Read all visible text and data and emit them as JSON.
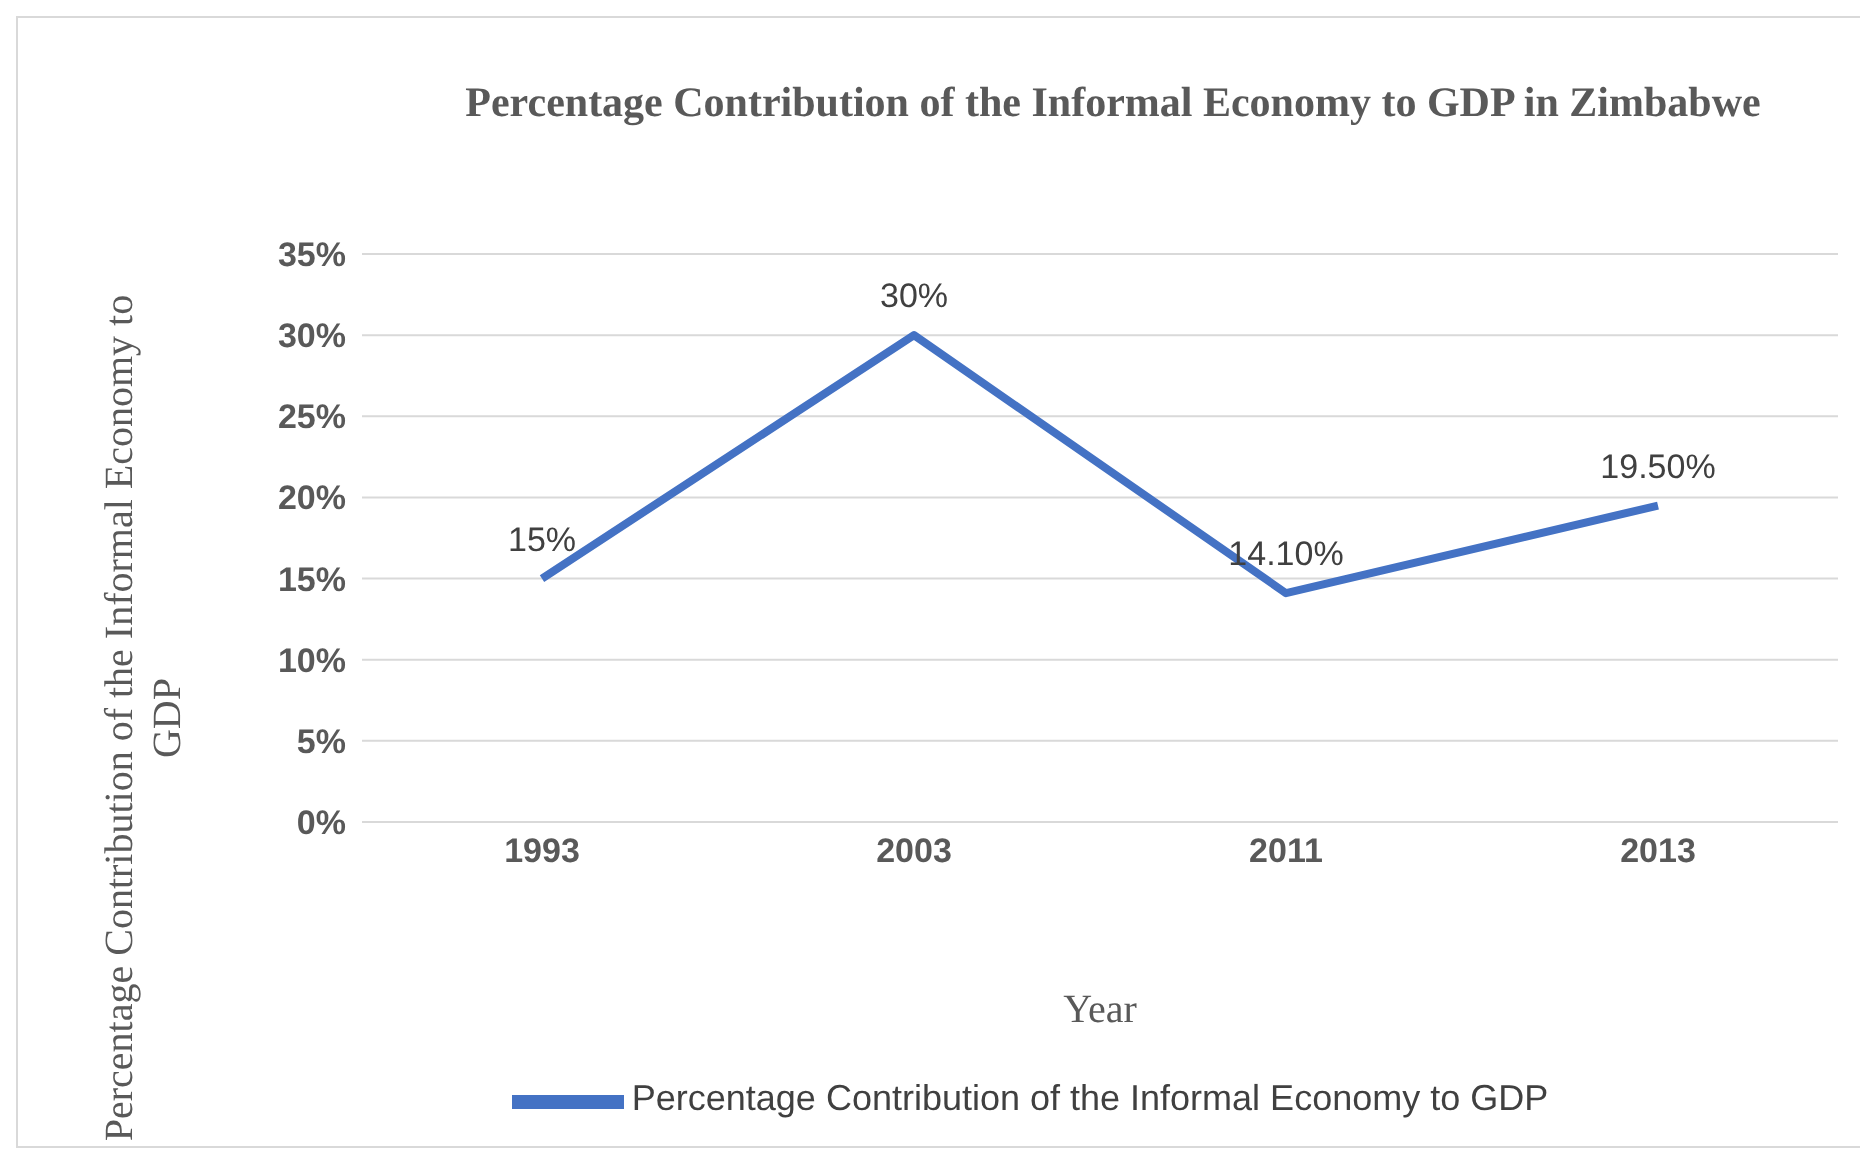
{
  "chart_data": {
    "type": "line",
    "title": "Percentage Contribution of the Informal Economy to GDP in Zimbabwe",
    "xlabel": "Year",
    "ylabel": "Percentage Contribution of the Informal Economy to GDP",
    "categories": [
      "1993",
      "2003",
      "2011",
      "2013"
    ],
    "series": [
      {
        "name": "Percentage Contribution of the Informal Economy to GDP",
        "color": "#4472c4",
        "values": [
          15,
          30,
          14.1,
          19.5
        ],
        "value_labels": [
          "15%",
          "30%",
          "14.10%",
          "19.50%"
        ]
      }
    ],
    "ylim": [
      0,
      35
    ],
    "yticks": [
      {
        "value": 0,
        "label": "0%"
      },
      {
        "value": 5,
        "label": "5%"
      },
      {
        "value": 10,
        "label": "10%"
      },
      {
        "value": 15,
        "label": "15%"
      },
      {
        "value": 20,
        "label": "20%"
      },
      {
        "value": 25,
        "label": "25%"
      },
      {
        "value": 30,
        "label": "30%"
      },
      {
        "value": 35,
        "label": "35%"
      }
    ],
    "grid": "y",
    "legend": "bottom",
    "marker": "none",
    "line_style": "solid"
  }
}
